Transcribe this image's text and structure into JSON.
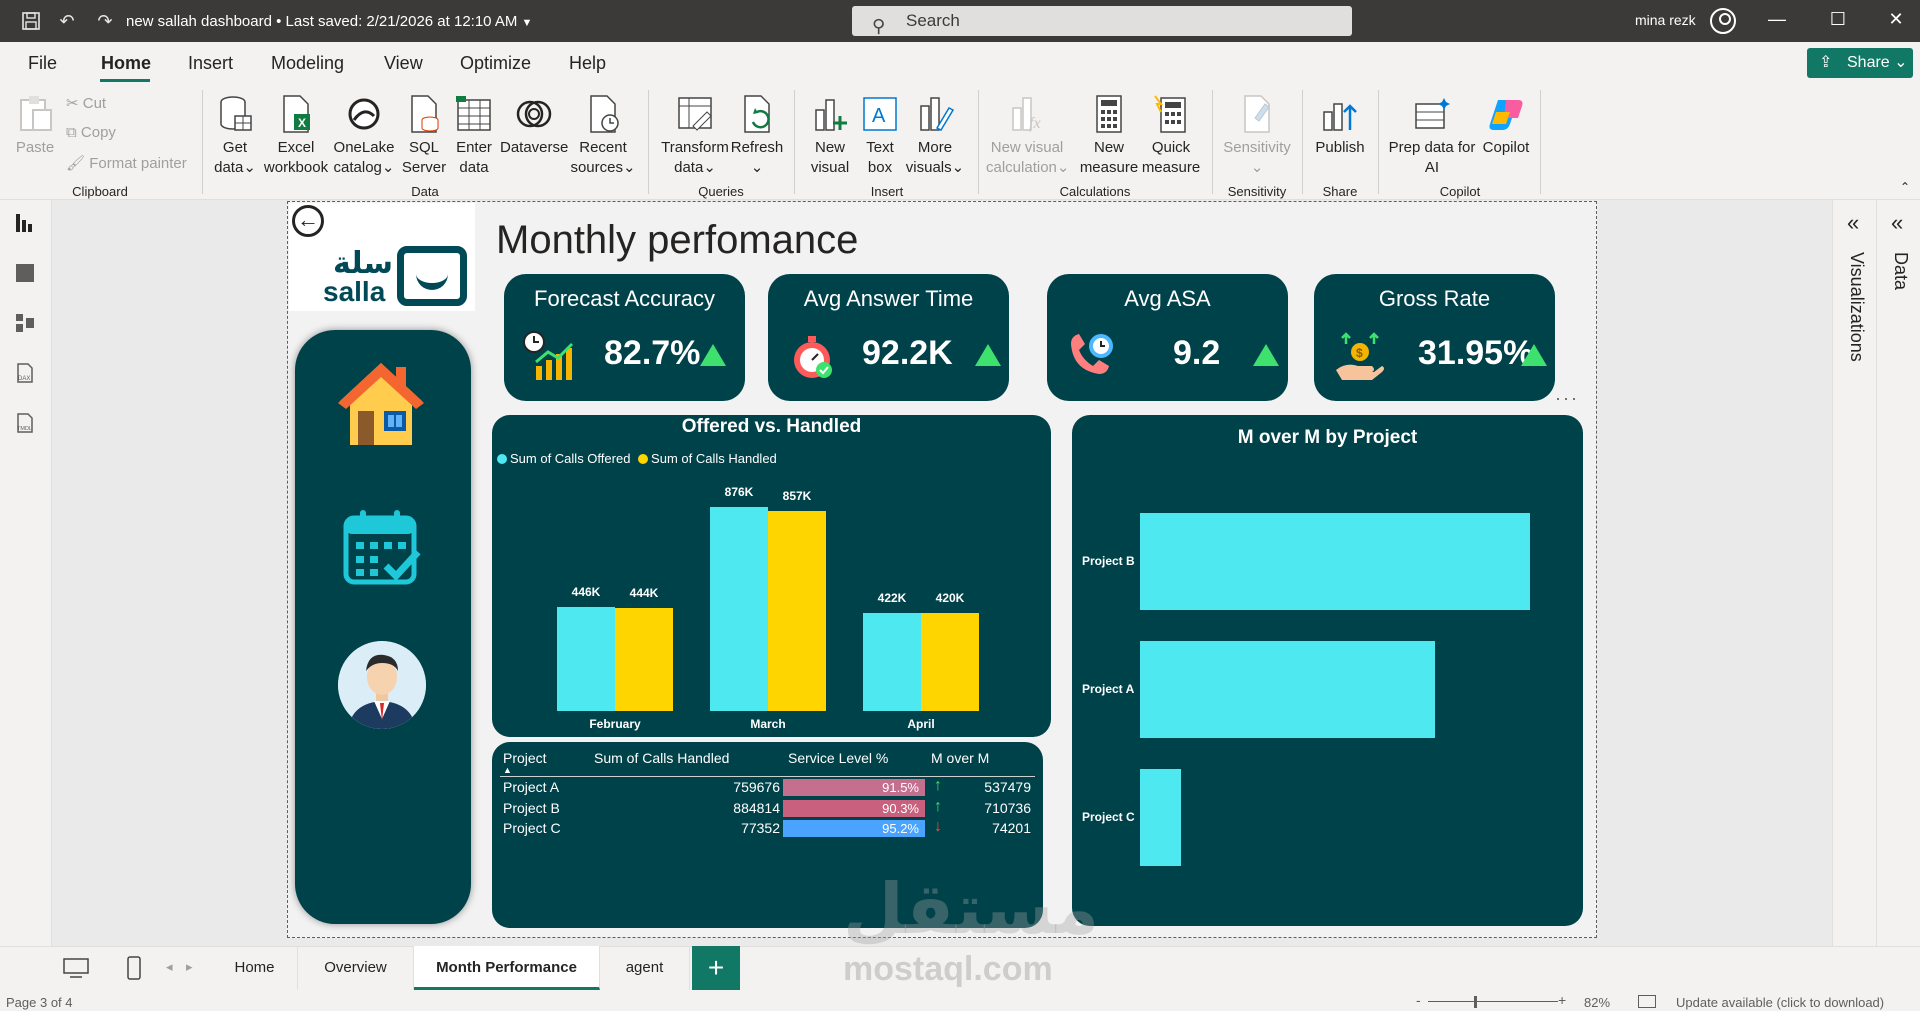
{
  "titlebar": {
    "doc_title": "new sallah dashboard • Last saved: 2/21/2026 at 12:10 AM",
    "search_placeholder": "Search",
    "user_name": "mina rezk"
  },
  "menu": {
    "items": [
      "File",
      "Home",
      "Insert",
      "Modeling",
      "View",
      "Optimize",
      "Help"
    ],
    "active": "Home",
    "share_label": "Share"
  },
  "ribbon": {
    "clipboard": {
      "paste": "Paste",
      "cut": "Cut",
      "copy": "Copy",
      "format_painter": "Format painter",
      "group": "Clipboard"
    },
    "data": {
      "get_data": [
        "Get",
        "data"
      ],
      "excel": [
        "Excel",
        "workbook"
      ],
      "onelake": [
        "OneLake",
        "catalog"
      ],
      "sql": [
        "SQL",
        "Server"
      ],
      "enter": [
        "Enter",
        "data"
      ],
      "dataverse": [
        "Dataverse"
      ],
      "recent": [
        "Recent",
        "sources"
      ],
      "group": "Data"
    },
    "queries": {
      "transform": [
        "Transform",
        "data"
      ],
      "refresh": [
        "Refresh"
      ],
      "group": "Queries"
    },
    "insert": {
      "new_visual": [
        "New",
        "visual"
      ],
      "text_box": [
        "Text",
        "box"
      ],
      "more_visuals": [
        "More",
        "visuals"
      ],
      "group": "Insert"
    },
    "calculations": {
      "new_visual_calc": [
        "New visual",
        "calculation"
      ],
      "new_measure": [
        "New",
        "measure"
      ],
      "quick_measure": [
        "Quick",
        "measure"
      ],
      "group": "Calculations"
    },
    "sensitivity": {
      "label": [
        "Sensitivity"
      ],
      "group": "Sensitivity"
    },
    "share": {
      "publish": [
        "Publish"
      ],
      "group": "Share"
    },
    "copilot": {
      "prep": [
        "Prep data for",
        "AI"
      ],
      "copilot": [
        "Copilot"
      ],
      "group": "Copilot"
    }
  },
  "report": {
    "title": "Monthly perfomance",
    "logo_ar": "سلة",
    "logo_en": "salla",
    "kpis": [
      {
        "title": "Forecast Accuracy",
        "value": "82.7%"
      },
      {
        "title": "Avg Answer Time",
        "value": "92.2K"
      },
      {
        "title": "Avg ASA",
        "value": "9.2"
      },
      {
        "title": "Gross Rate",
        "value": "31.95%"
      }
    ],
    "table": {
      "headers": [
        "Project",
        "Sum of Calls Handled",
        "Service Level %",
        "M over M"
      ],
      "rows": [
        {
          "project": "Project A",
          "handled": "759676",
          "service": "91.5%",
          "mom": "537479",
          "trend": "up"
        },
        {
          "project": "Project B",
          "handled": "884814",
          "service": "90.3%",
          "mom": "710736",
          "trend": "up"
        },
        {
          "project": "Project C",
          "handled": "77352",
          "service": "95.2%",
          "mom": "74201",
          "trend": "down"
        }
      ]
    }
  },
  "chart_data": [
    {
      "type": "bar",
      "title": "Offered vs. Handled",
      "categories": [
        "February",
        "March",
        "April"
      ],
      "series": [
        {
          "name": "Sum of Calls Offered",
          "values": [
            446000,
            876000,
            422000
          ],
          "labels": [
            "446K",
            "876K",
            "422K"
          ],
          "color": "#4de8f0"
        },
        {
          "name": "Sum of Calls Handled",
          "values": [
            444000,
            857000,
            420000
          ],
          "labels": [
            "444K",
            "857K",
            "420K"
          ],
          "color": "#ffd500"
        }
      ],
      "legend": "top-left"
    },
    {
      "type": "bar",
      "orientation": "horizontal",
      "title": "M over M by Project",
      "categories": [
        "Project B",
        "Project A",
        "Project C"
      ],
      "values": [
        710736,
        537479,
        74201
      ],
      "color": "#4de8f0"
    }
  ],
  "panes": {
    "visualizations": "Visualizations",
    "data": "Data"
  },
  "tabs": [
    "Home",
    "Overview",
    "Month Performance",
    "agent"
  ],
  "active_tab": "Month Performance",
  "status": {
    "page": "Page 3 of 4",
    "zoom": "82%",
    "update": "Update available (click to download)"
  },
  "watermark": {
    "ar": "مستقل",
    "en": "mostaql.com"
  },
  "colors": {
    "teal_dark": "#00424a",
    "cyan": "#4de8f0",
    "yellow": "#ffd500",
    "accent": "#117865"
  }
}
